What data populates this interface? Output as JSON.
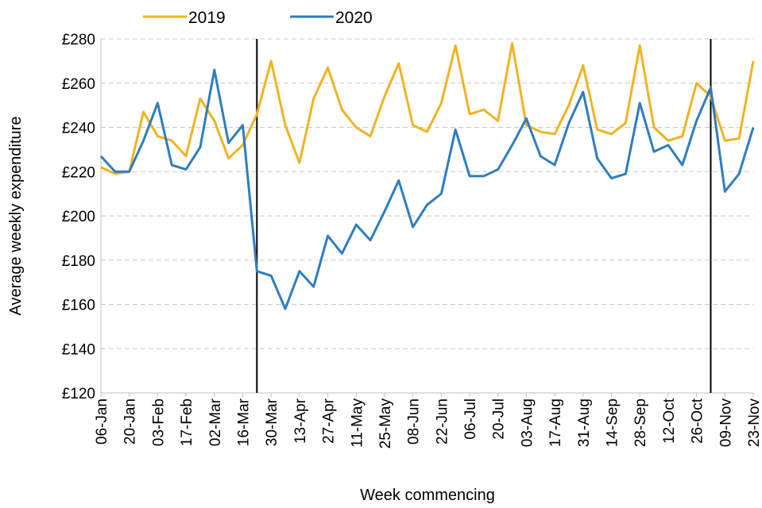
{
  "chart_data": {
    "type": "line",
    "x_label": "Week commencing",
    "y_label": "Average weekly expenditure",
    "categories": [
      "06-Jan",
      null,
      "20-Jan",
      null,
      "03-Feb",
      null,
      "17-Feb",
      null,
      "02-Mar",
      null,
      "16-Mar",
      null,
      "30-Mar",
      null,
      "13-Apr",
      null,
      "27-Apr",
      null,
      "11-May",
      null,
      "25-May",
      null,
      "08-Jun",
      null,
      "22-Jun",
      null,
      "06-Jul",
      null,
      "20-Jul",
      null,
      "03-Aug",
      null,
      "17-Aug",
      null,
      "31-Aug",
      null,
      "14-Sep",
      null,
      "28-Sep",
      null,
      "12-Oct",
      null,
      "26-Oct",
      null,
      "09-Nov",
      null,
      "23-Nov"
    ],
    "series": [
      {
        "name": "2019",
        "color": "#f0b323",
        "values": [
          222,
          219,
          220,
          247,
          236,
          234,
          227,
          253,
          243,
          226,
          232,
          246,
          270,
          241,
          224,
          253,
          267,
          248,
          240,
          236,
          254,
          269,
          241,
          238,
          251,
          277,
          246,
          248,
          243,
          278,
          241,
          238,
          237,
          250,
          268,
          239,
          237,
          242,
          277,
          240,
          234,
          236,
          260,
          254,
          234,
          235,
          270
        ]
      },
      {
        "name": "2020",
        "color": "#2e7dc1",
        "values": [
          227,
          220,
          220,
          234,
          251,
          223,
          221,
          231,
          266,
          233,
          241,
          175,
          173,
          158,
          175,
          168,
          191,
          183,
          196,
          189,
          202,
          216,
          195,
          205,
          210,
          239,
          218,
          218,
          221,
          232,
          244,
          227,
          223,
          242,
          256,
          226,
          217,
          219,
          251,
          229,
          232,
          223,
          243,
          258,
          211,
          219,
          240
        ]
      }
    ],
    "vlines": [
      11,
      43
    ],
    "ylim": [
      120,
      280
    ],
    "yticks": [
      {
        "value": 120,
        "label": "£120"
      },
      {
        "value": 140,
        "label": "£140"
      },
      {
        "value": 160,
        "label": "£160"
      },
      {
        "value": 180,
        "label": "£180"
      },
      {
        "value": 200,
        "label": "£200"
      },
      {
        "value": 220,
        "label": "£220"
      },
      {
        "value": 240,
        "label": "£240"
      },
      {
        "value": 260,
        "label": "£260"
      },
      {
        "value": 280,
        "label": "£280"
      }
    ],
    "grid": true,
    "legend": "top"
  }
}
